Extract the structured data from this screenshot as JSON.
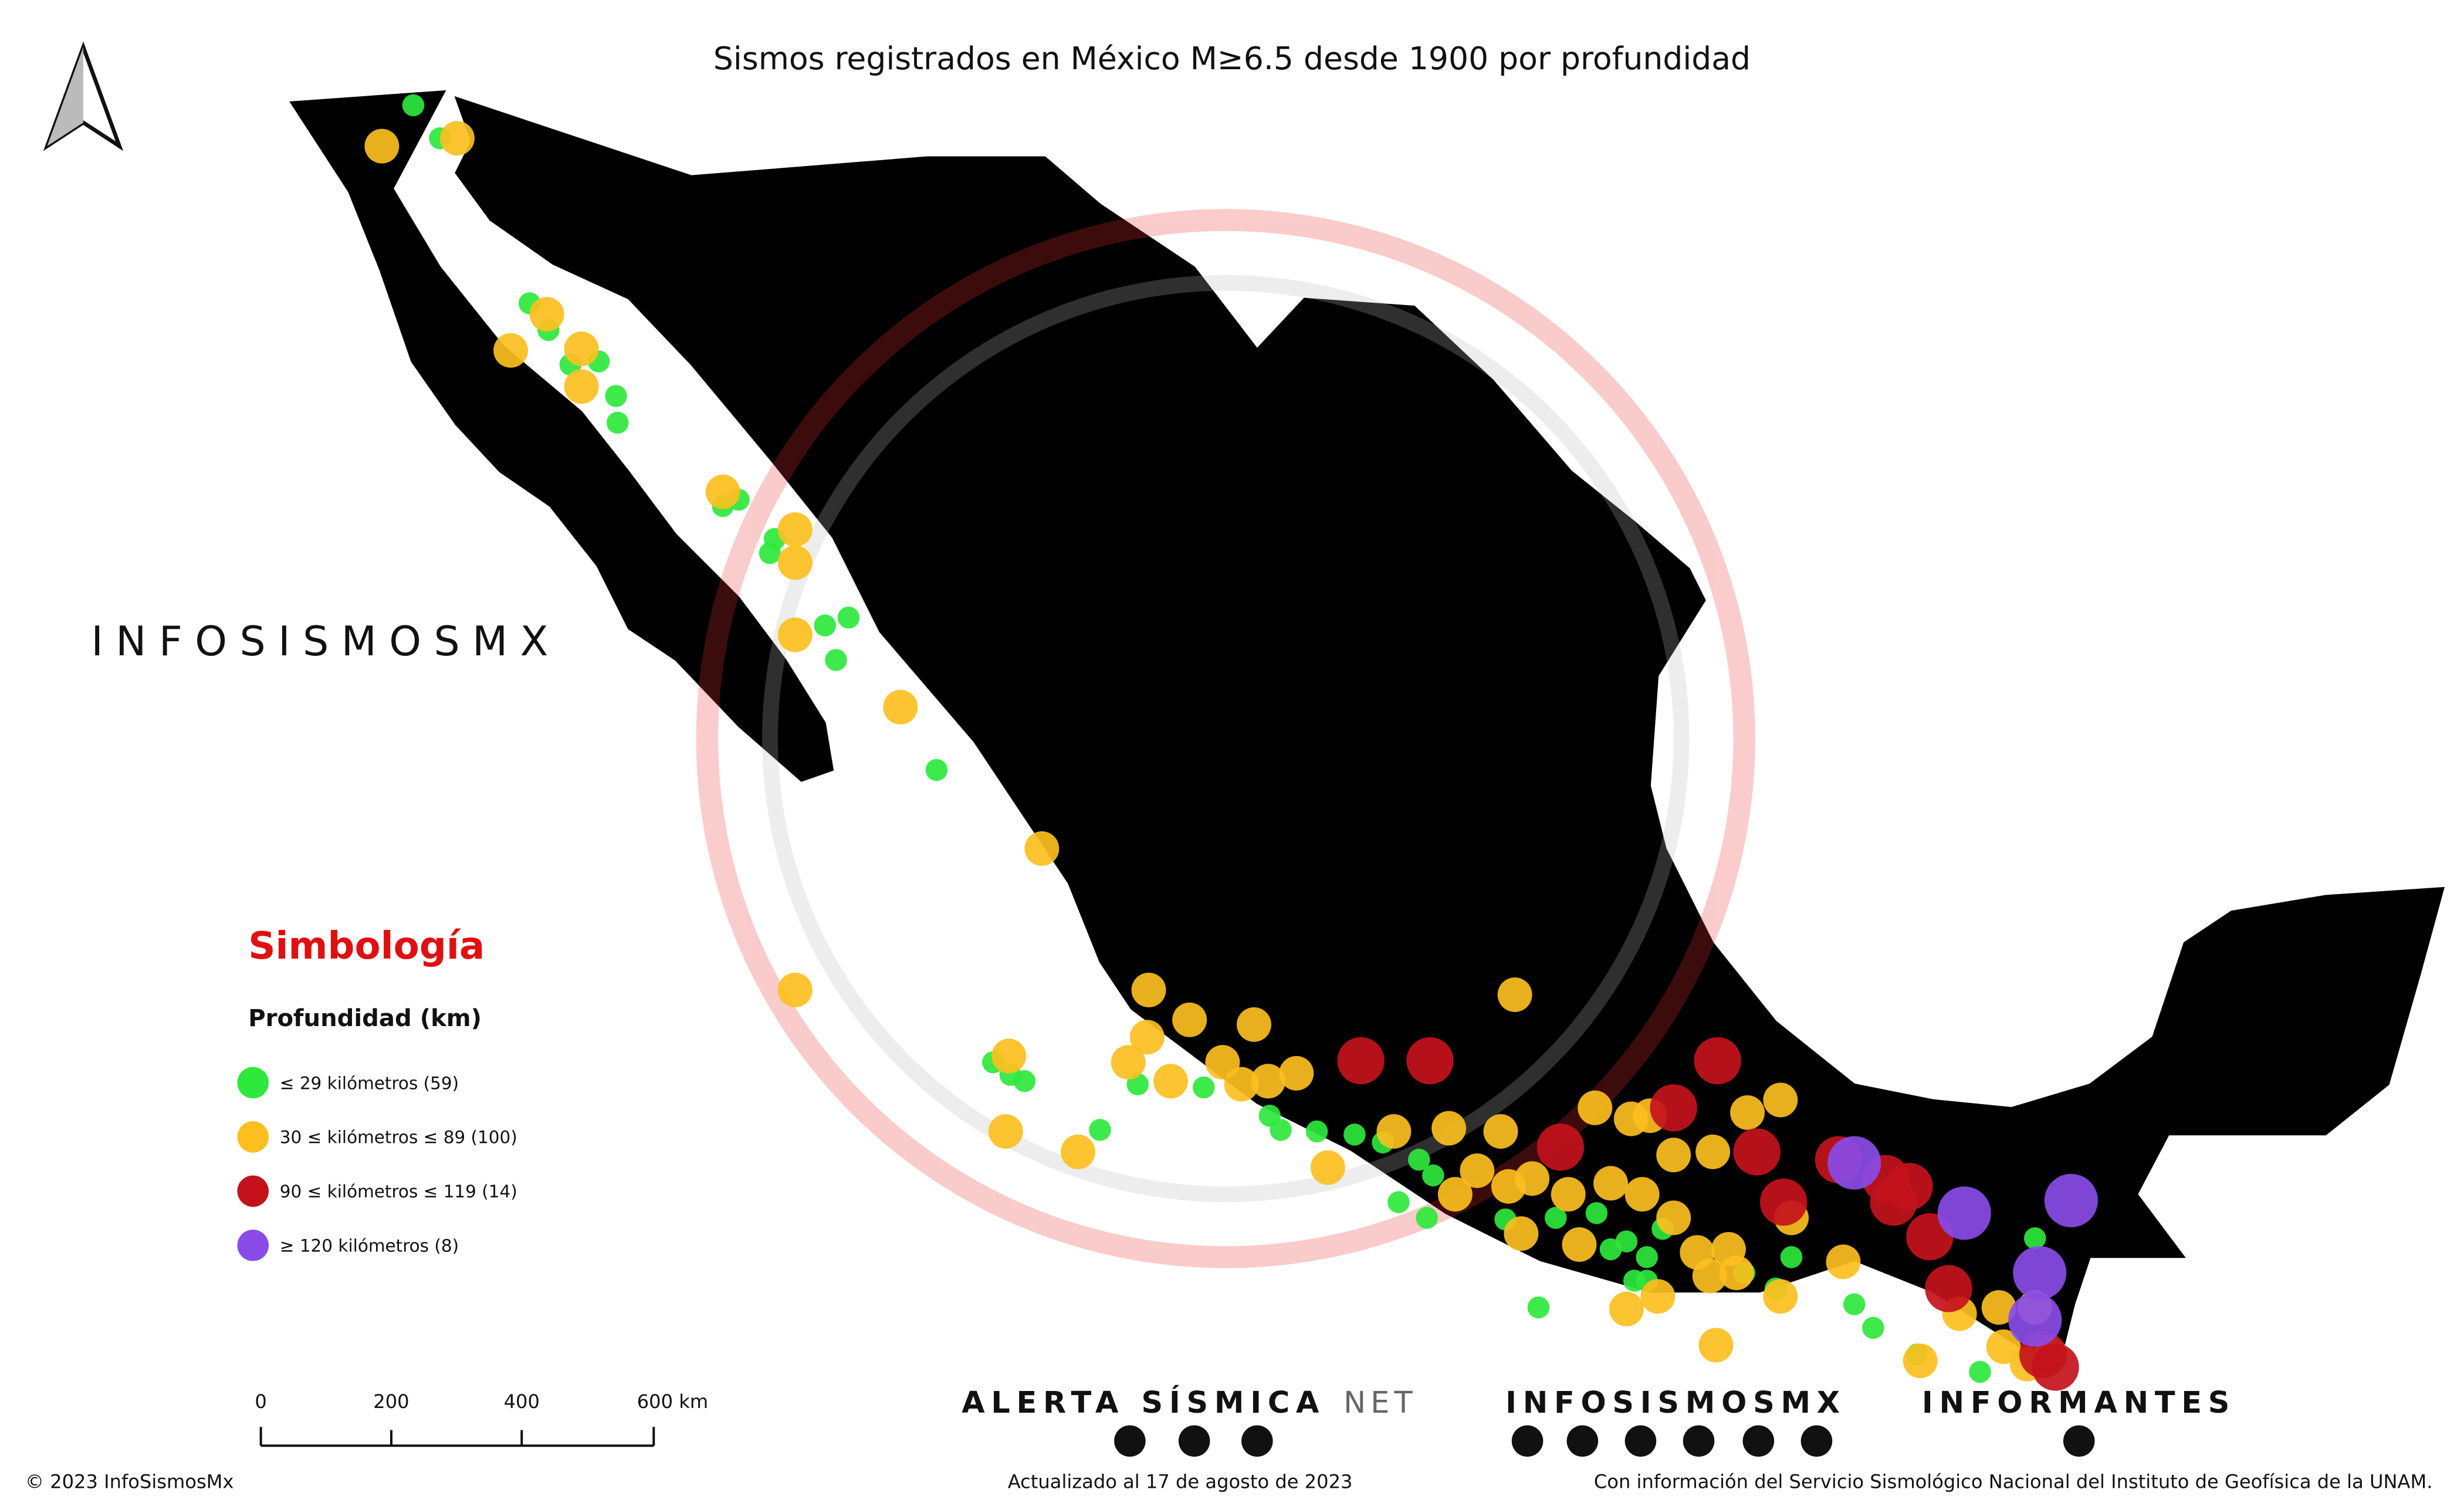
{
  "header": {
    "title": "Sismos registrados en México M≥6.5 desde 1900 por profundidad"
  },
  "legend": {
    "title": "Simbología",
    "subtitle": "Profundidad (km)",
    "items": [
      {
        "label": "≤ 29 kilómetros (59)",
        "color": "#2ee83c"
      },
      {
        "label": "30 ≤ kilómetros ≤ 89 (100)",
        "color": "#fcbf1e"
      },
      {
        "label": "90 ≤ kilómetros ≤ 119 (14)",
        "color": "#c4121c"
      },
      {
        "label": "≥ 120 kilómetros (8)",
        "color": "#8a4ce8"
      }
    ]
  },
  "brand": {
    "left": "INFOSISMOSMX",
    "alerta": "ALERTA SÍSMICA",
    "alerta_suffix": "NET",
    "infosismos": "INFOSISMOSMX",
    "informantes": "INFORMANTES"
  },
  "scale_bar": {
    "labels": [
      "0",
      "200",
      "400",
      "600 km"
    ]
  },
  "footer": {
    "copyright": "© 2023 InfoSismosMx",
    "updated": "Actualizado al 17 de agosto de 2023",
    "source": "Con información del Servicio Sismológico Nacional del Instituto de Geofísica de la UNAM."
  }
}
